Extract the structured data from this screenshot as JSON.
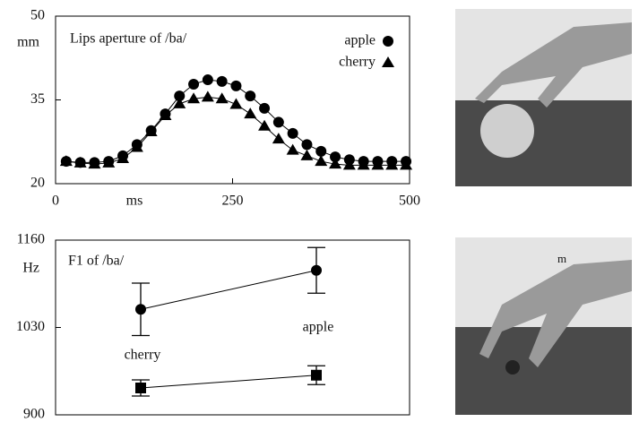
{
  "chart_data": [
    {
      "type": "line",
      "title": "Lips aperture of /ba/",
      "ylabel": "mm",
      "xlabel": "ms",
      "x": [
        15,
        35,
        55,
        75,
        95,
        115,
        135,
        155,
        175,
        195,
        215,
        235,
        255,
        275,
        295,
        315,
        335,
        355,
        375,
        395,
        415,
        435,
        455,
        475,
        495
      ],
      "xlim": [
        0,
        500
      ],
      "xticks": [
        0,
        250,
        500
      ],
      "ylim": [
        20,
        50
      ],
      "yticks": [
        20,
        35,
        50
      ],
      "series": [
        {
          "name": "apple",
          "color": "#000000",
          "marker": "circle",
          "values": [
            24,
            23.8,
            23.8,
            24,
            25,
            27,
            29.5,
            32.5,
            35.7,
            37.8,
            38.6,
            38.3,
            37.5,
            35.7,
            33.5,
            31,
            29,
            27,
            25.8,
            24.8,
            24.3,
            24,
            24,
            24,
            24
          ]
        },
        {
          "name": "cherry",
          "color": "#000000",
          "marker": "triangle",
          "values": [
            24,
            23.7,
            23.5,
            23.7,
            24.5,
            26.5,
            29.3,
            32.2,
            34.3,
            35.2,
            35.5,
            35.2,
            34.2,
            32.5,
            30.3,
            28,
            26,
            25,
            24,
            23.5,
            23.3,
            23.3,
            23.3,
            23.3,
            23.3
          ]
        }
      ]
    },
    {
      "type": "errorbar",
      "title": "F1 of  /ba/",
      "ylabel": "Hz",
      "categories": [
        "cherry",
        "apple"
      ],
      "ylim": [
        900,
        1160
      ],
      "yticks": [
        900,
        1030,
        1160
      ],
      "series": [
        {
          "color": "#000000",
          "marker": "circle",
          "values": [
            1057,
            1115
          ],
          "errors": [
            39,
            34
          ]
        },
        {
          "color": "#000000",
          "marker": "square",
          "values": [
            940,
            959
          ],
          "errors": [
            12,
            14
          ]
        }
      ]
    }
  ]
}
